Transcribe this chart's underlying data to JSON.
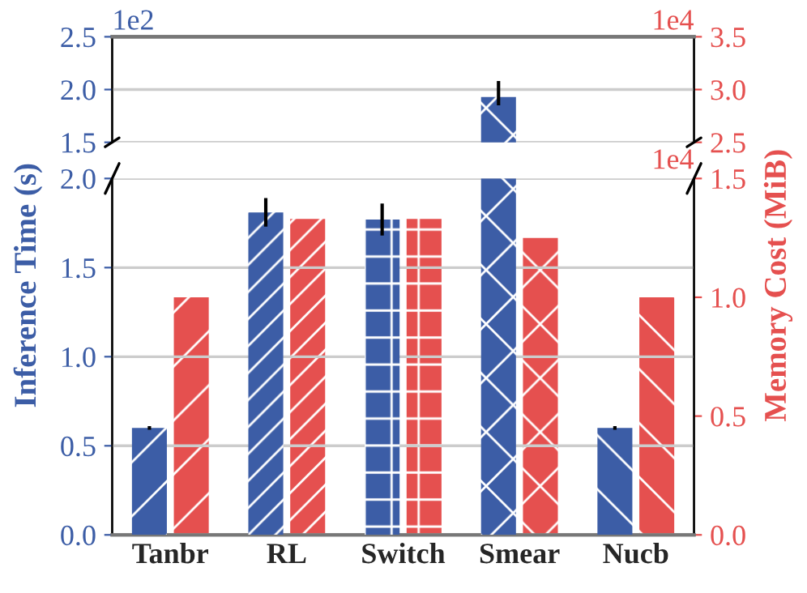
{
  "chart_data": [
    {
      "type": "bar",
      "categories": [
        null,
        null,
        null,
        null,
        null
      ],
      "series": [
        {
          "color": "#3c5da6",
          "values": [
            null,
            null,
            null,
            1.93,
            null
          ],
          "errors": [
            null,
            null,
            null,
            [
              1.85,
              2.08
            ],
            null
          ]
        },
        {
          "color": "#e5504f",
          "axis": "y2",
          "values": [
            null,
            null,
            null,
            null,
            null
          ]
        }
      ],
      "ylim": [
        1.5,
        2.5
      ],
      "yticks": [
        {
          "value": 1.5,
          "label": "1.5"
        },
        {
          "value": 2.0,
          "label": "2.0"
        },
        {
          "value": 2.5,
          "label": "2.5"
        }
      ],
      "y2lim": [
        2.5,
        3.5
      ],
      "y2ticks": [
        {
          "value": 2.5,
          "label": "2.5"
        },
        {
          "value": 3.0,
          "label": "3.0"
        },
        {
          "value": 3.5,
          "label": "3.5"
        }
      ],
      "grid": "y",
      "tick_labels": "y",
      "annotations": [
        "1e2",
        "1e4"
      ]
    },
    {
      "type": "bar",
      "categories": [
        "Tanbr",
        "RL",
        "Switch",
        "Smear",
        "Nucb"
      ],
      "series": [
        {
          "color": "#3c5da6",
          "values": [
            0.6,
            1.81,
            1.77,
            2.0,
            0.6
          ],
          "errors": [
            0.01,
            0.08,
            0.09,
            null,
            0.01
          ]
        },
        {
          "color": "#e5504f",
          "axis": "y2",
          "values": [
            1.0,
            1.33,
            1.33,
            1.25,
            1.0
          ]
        }
      ],
      "ylim": [
        0,
        2.0
      ],
      "yticks": [
        {
          "value": 0,
          "label": "0.0"
        },
        {
          "value": 0.5,
          "label": "0.5"
        },
        {
          "value": 1.0,
          "label": "1.0"
        },
        {
          "value": 1.5,
          "label": "1.5"
        },
        {
          "value": 2.0,
          "label": "2.0"
        }
      ],
      "y2lim": [
        0,
        1.5
      ],
      "y2ticks": [
        {
          "value": 0,
          "label": "0.0"
        },
        {
          "value": 0.5,
          "label": "0.5"
        },
        {
          "value": 1.0,
          "label": "1.0"
        },
        {
          "value": 1.5,
          "label": "1.5"
        }
      ],
      "ylabel": "Inference Time (s)",
      "y2label": "Memory Cost (MiB)",
      "grid": "y",
      "annotations": [
        "1e4"
      ]
    }
  ]
}
